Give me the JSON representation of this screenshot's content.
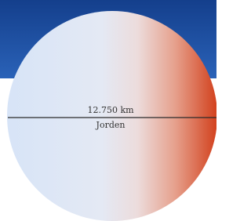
{
  "diagram": {
    "diameter_label": "12.750 km",
    "planet_name": "Jorden"
  }
}
